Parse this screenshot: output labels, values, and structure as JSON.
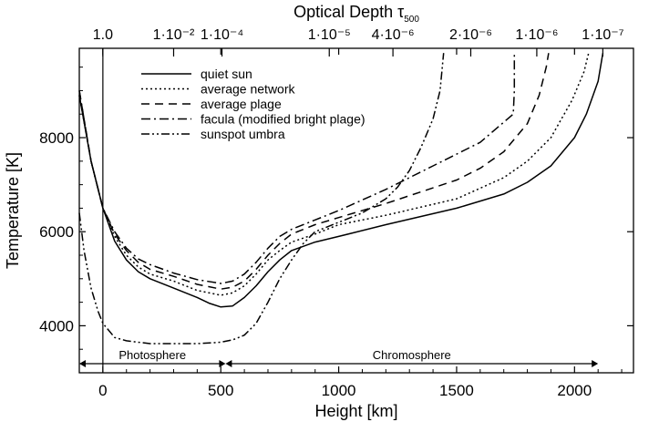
{
  "chart_data": {
    "type": "line",
    "title": "",
    "xlabel": "Height [km]",
    "ylabel": "Temperature [K]",
    "xlim": [
      -100,
      2250
    ],
    "ylim": [
      3000,
      9900
    ],
    "x_ticks": [
      0,
      500,
      1000,
      1500,
      2000
    ],
    "y_ticks": [
      4000,
      6000,
      8000
    ],
    "top_axis": {
      "label": "Optical Depth τ",
      "label_subscript": "500",
      "ticks": [
        {
          "x": 0,
          "label": "1.0"
        },
        {
          "x": 300,
          "label": "1·10⁻²"
        },
        {
          "x": 505,
          "label": "1·10⁻⁴"
        },
        {
          "x": 960,
          "label": "1·10⁻⁵"
        },
        {
          "x": 1230,
          "label": "4·10⁻⁶"
        },
        {
          "x": 1560,
          "label": "2·10⁻⁶"
        },
        {
          "x": 1840,
          "label": "1·10⁻⁶"
        },
        {
          "x": 2120,
          "label": "1·10⁻⁷"
        }
      ]
    },
    "vertical_line_x": 0,
    "regions": [
      {
        "label": "Photosphere",
        "from": -100,
        "to": 520
      },
      {
        "label": "Chromosphere",
        "from": 520,
        "to": 2100
      }
    ],
    "legend_position": "top-left",
    "series": [
      {
        "name": "quiet sun",
        "dash": "solid",
        "points": [
          [
            -100,
            8900
          ],
          [
            -50,
            7500
          ],
          [
            0,
            6500
          ],
          [
            50,
            5800
          ],
          [
            100,
            5400
          ],
          [
            150,
            5150
          ],
          [
            200,
            5000
          ],
          [
            300,
            4800
          ],
          [
            400,
            4600
          ],
          [
            450,
            4480
          ],
          [
            500,
            4400
          ],
          [
            550,
            4420
          ],
          [
            600,
            4600
          ],
          [
            650,
            4850
          ],
          [
            700,
            5150
          ],
          [
            750,
            5400
          ],
          [
            800,
            5600
          ],
          [
            900,
            5780
          ],
          [
            1000,
            5900
          ],
          [
            1200,
            6150
          ],
          [
            1500,
            6500
          ],
          [
            1700,
            6800
          ],
          [
            1800,
            7050
          ],
          [
            1900,
            7400
          ],
          [
            2000,
            8000
          ],
          [
            2050,
            8500
          ],
          [
            2100,
            9200
          ],
          [
            2120,
            9800
          ]
        ]
      },
      {
        "name": "average network",
        "dash": "2,3",
        "points": [
          [
            -100,
            8900
          ],
          [
            -50,
            7500
          ],
          [
            0,
            6500
          ],
          [
            50,
            5900
          ],
          [
            100,
            5500
          ],
          [
            150,
            5250
          ],
          [
            200,
            5100
          ],
          [
            300,
            4950
          ],
          [
            400,
            4750
          ],
          [
            500,
            4650
          ],
          [
            550,
            4700
          ],
          [
            600,
            4850
          ],
          [
            650,
            5100
          ],
          [
            700,
            5400
          ],
          [
            750,
            5600
          ],
          [
            800,
            5780
          ],
          [
            900,
            5950
          ],
          [
            1000,
            6150
          ],
          [
            1200,
            6350
          ],
          [
            1500,
            6700
          ],
          [
            1700,
            7150
          ],
          [
            1800,
            7500
          ],
          [
            1900,
            8000
          ],
          [
            1990,
            8800
          ],
          [
            2040,
            9400
          ],
          [
            2060,
            9800
          ]
        ]
      },
      {
        "name": "average plage",
        "dash": "9,6",
        "points": [
          [
            -100,
            9000
          ],
          [
            -50,
            7500
          ],
          [
            0,
            6500
          ],
          [
            50,
            5950
          ],
          [
            100,
            5600
          ],
          [
            150,
            5350
          ],
          [
            200,
            5200
          ],
          [
            300,
            5050
          ],
          [
            400,
            4880
          ],
          [
            500,
            4780
          ],
          [
            550,
            4820
          ],
          [
            600,
            4950
          ],
          [
            650,
            5200
          ],
          [
            700,
            5500
          ],
          [
            750,
            5750
          ],
          [
            800,
            5950
          ],
          [
            900,
            6150
          ],
          [
            1000,
            6300
          ],
          [
            1200,
            6600
          ],
          [
            1500,
            7100
          ],
          [
            1600,
            7350
          ],
          [
            1700,
            7700
          ],
          [
            1800,
            8300
          ],
          [
            1850,
            8900
          ],
          [
            1880,
            9500
          ],
          [
            1890,
            9800
          ]
        ]
      },
      {
        "name": "facula (modified bright plage)",
        "dash": "10,4,2,4",
        "points": [
          [
            -100,
            9000
          ],
          [
            -50,
            7500
          ],
          [
            0,
            6500
          ],
          [
            50,
            6000
          ],
          [
            100,
            5650
          ],
          [
            150,
            5420
          ],
          [
            200,
            5300
          ],
          [
            300,
            5120
          ],
          [
            400,
            4980
          ],
          [
            500,
            4900
          ],
          [
            550,
            4950
          ],
          [
            600,
            5100
          ],
          [
            650,
            5350
          ],
          [
            700,
            5650
          ],
          [
            750,
            5900
          ],
          [
            800,
            6050
          ],
          [
            900,
            6250
          ],
          [
            1000,
            6450
          ],
          [
            1200,
            6900
          ],
          [
            1400,
            7400
          ],
          [
            1600,
            7900
          ],
          [
            1740,
            8500
          ],
          [
            1745,
            9000
          ],
          [
            1745,
            9800
          ]
        ]
      },
      {
        "name": "sunspot umbra",
        "dash": "9,3,2,3,2,3",
        "points": [
          [
            -100,
            6400
          ],
          [
            -80,
            5600
          ],
          [
            -50,
            4800
          ],
          [
            -20,
            4300
          ],
          [
            0,
            4050
          ],
          [
            50,
            3750
          ],
          [
            100,
            3680
          ],
          [
            200,
            3620
          ],
          [
            400,
            3620
          ],
          [
            500,
            3650
          ],
          [
            550,
            3700
          ],
          [
            600,
            3800
          ],
          [
            650,
            4050
          ],
          [
            700,
            4500
          ],
          [
            750,
            5000
          ],
          [
            800,
            5400
          ],
          [
            850,
            5750
          ],
          [
            900,
            6000
          ],
          [
            1000,
            6200
          ],
          [
            1100,
            6400
          ],
          [
            1200,
            6700
          ],
          [
            1250,
            6950
          ],
          [
            1300,
            7300
          ],
          [
            1350,
            7800
          ],
          [
            1400,
            8400
          ],
          [
            1430,
            9000
          ],
          [
            1445,
            9800
          ]
        ]
      }
    ]
  }
}
